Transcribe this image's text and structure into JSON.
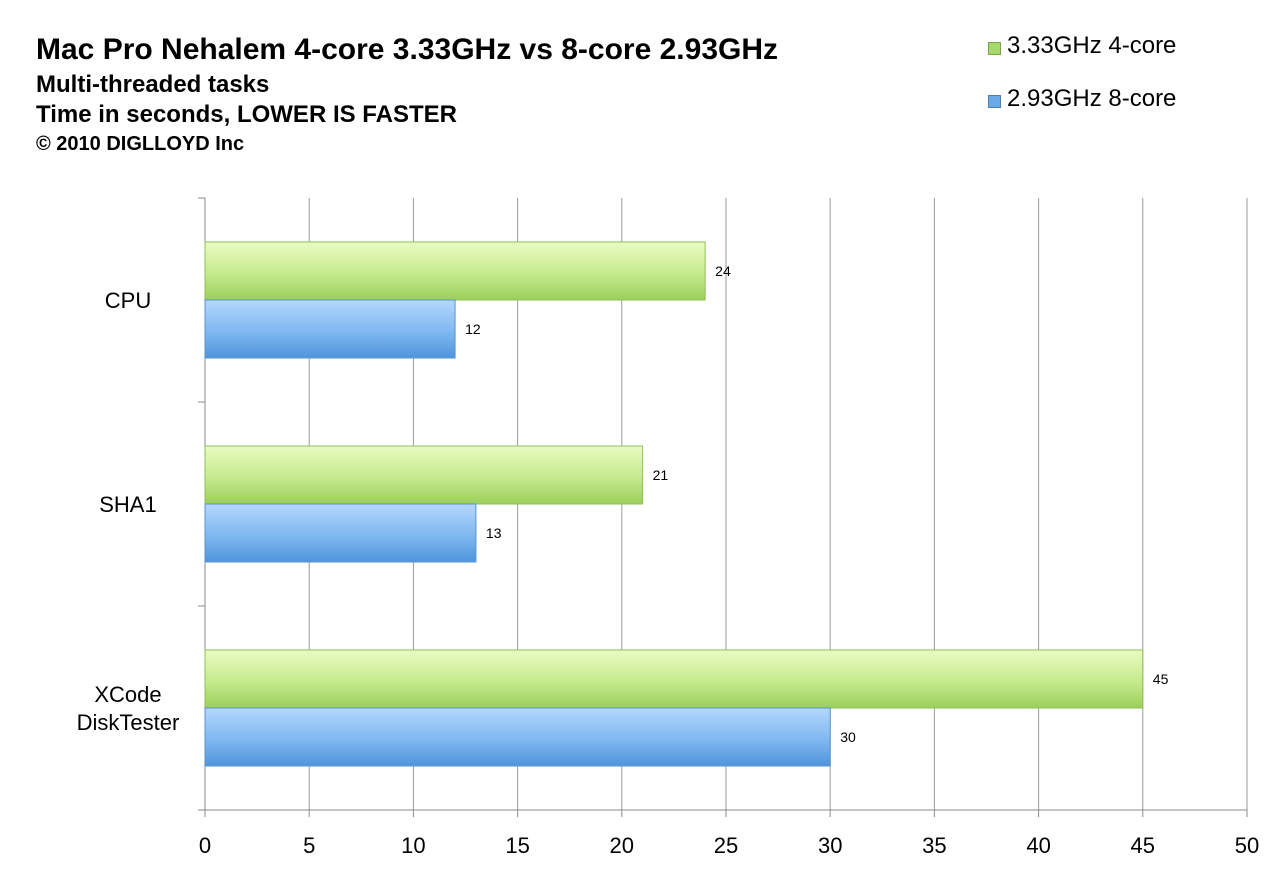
{
  "chart_data": {
    "type": "bar",
    "orientation": "horizontal",
    "title": "Mac Pro Nehalem 4-core 3.33GHz vs 8-core 2.93GHz",
    "subtitle": [
      "Multi-threaded tasks",
      "Time in seconds, LOWER IS FASTER"
    ],
    "copyright": "© 2010 DIGLLOYD Inc",
    "categories": [
      "CPU",
      "SHA1",
      "XCode DiskTester"
    ],
    "series": [
      {
        "name": "3.33GHz 4-core",
        "values": [
          24,
          21,
          45
        ],
        "color": "#a6d86a"
      },
      {
        "name": "2.93GHz 8-core",
        "values": [
          12,
          13,
          30
        ],
        "color": "#6aaae8"
      }
    ],
    "xlim": [
      0,
      50
    ],
    "xticks": [
      0,
      5,
      10,
      15,
      20,
      25,
      30,
      35,
      40,
      45,
      50
    ],
    "xlabel": "",
    "ylabel": "",
    "grid": true,
    "legend_position": "top-right",
    "data_labels": true
  }
}
